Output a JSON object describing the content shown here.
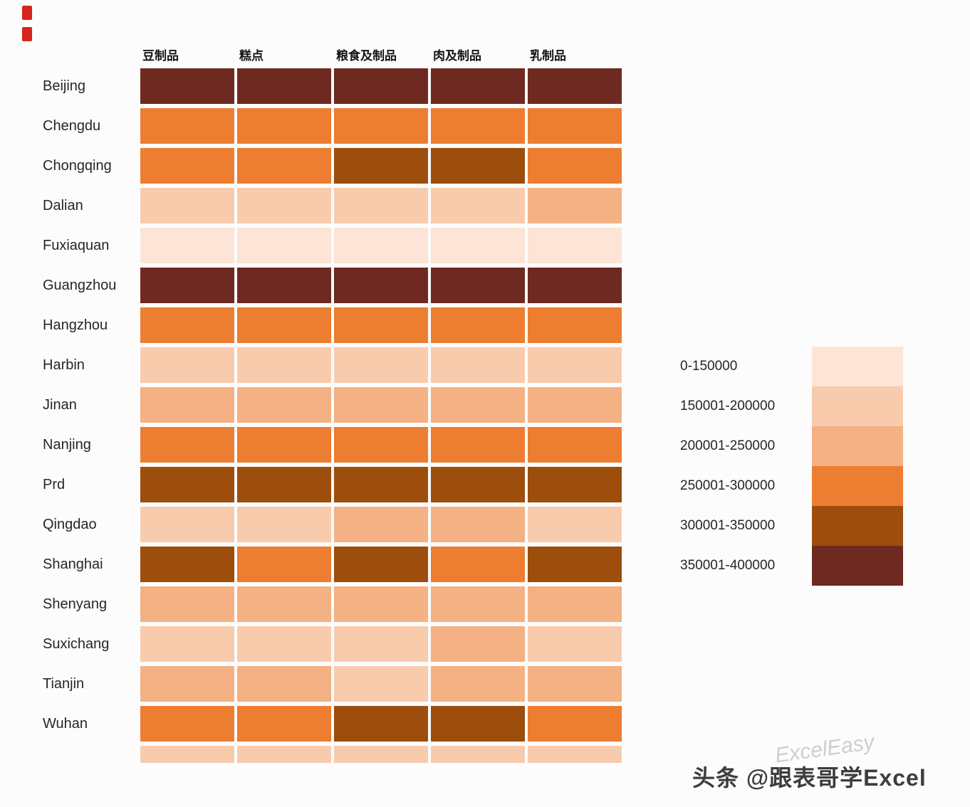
{
  "chart_data": {
    "type": "heatmap",
    "title": "",
    "columns": [
      "豆制品",
      "糕点",
      "粮食及制品",
      "肉及制品",
      "乳制品"
    ],
    "rows": [
      {
        "label": "Beijing",
        "levels": [
          6,
          6,
          6,
          6,
          6
        ]
      },
      {
        "label": "Chengdu",
        "levels": [
          4,
          4,
          4,
          4,
          4
        ]
      },
      {
        "label": "Chongqing",
        "levels": [
          4,
          4,
          5,
          5,
          4
        ]
      },
      {
        "label": "Dalian",
        "levels": [
          2,
          2,
          2,
          2,
          3
        ]
      },
      {
        "label": "Fuxiaquan",
        "levels": [
          1,
          1,
          1,
          1,
          1
        ]
      },
      {
        "label": "Guangzhou",
        "levels": [
          6,
          6,
          6,
          6,
          6
        ]
      },
      {
        "label": "Hangzhou",
        "levels": [
          4,
          4,
          4,
          4,
          4
        ]
      },
      {
        "label": "Harbin",
        "levels": [
          2,
          2,
          2,
          2,
          2
        ]
      },
      {
        "label": "Jinan",
        "levels": [
          3,
          3,
          3,
          3,
          3
        ]
      },
      {
        "label": "Nanjing",
        "levels": [
          4,
          4,
          4,
          4,
          4
        ]
      },
      {
        "label": "Prd",
        "levels": [
          5,
          5,
          5,
          5,
          5
        ]
      },
      {
        "label": "Qingdao",
        "levels": [
          2,
          2,
          3,
          3,
          2
        ]
      },
      {
        "label": "Shanghai",
        "levels": [
          5,
          4,
          5,
          4,
          5
        ]
      },
      {
        "label": "Shenyang",
        "levels": [
          3,
          3,
          3,
          3,
          3
        ]
      },
      {
        "label": "Suxichang",
        "levels": [
          2,
          2,
          2,
          3,
          2
        ]
      },
      {
        "label": "Tianjin",
        "levels": [
          3,
          3,
          2,
          3,
          3
        ]
      },
      {
        "label": "Wuhan",
        "levels": [
          4,
          4,
          5,
          5,
          4
        ]
      },
      {
        "label": "",
        "levels": [
          2,
          2,
          2,
          2,
          2
        ],
        "partial": true
      }
    ],
    "legend": {
      "position": "right",
      "entries": [
        {
          "range": "0-150000",
          "color": "#fce4d6"
        },
        {
          "range": "150001-200000",
          "color": "#f8cbad"
        },
        {
          "range": "200001-250000",
          "color": "#f4b183"
        },
        {
          "range": "250001-300000",
          "color": "#ed7d31"
        },
        {
          "range": "300001-350000",
          "color": "#9d4d0c"
        },
        {
          "range": "350001-400000",
          "color": "#6e2a20"
        }
      ]
    },
    "encoding_note": "cell color encodes value range; levels are 1-6 indices into legend.entries"
  },
  "watermark": {
    "text": "头条 @跟表哥学Excel",
    "background_text": "ExcelEasy"
  }
}
